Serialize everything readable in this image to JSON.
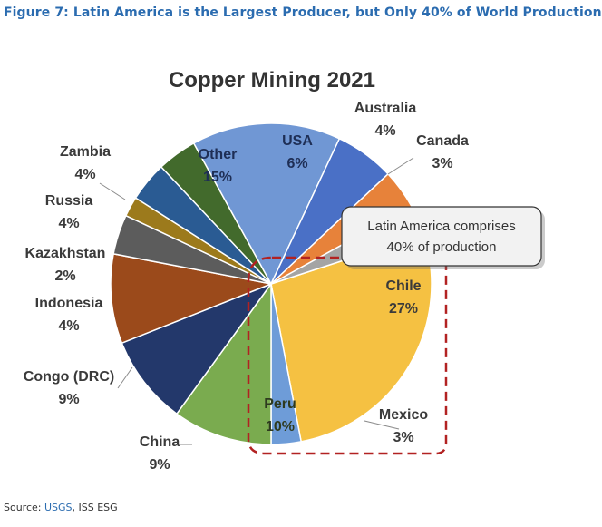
{
  "figure_title": "Figure 7: Latin America is the Largest Producer, but Only 40% of World Production",
  "source": {
    "prefix": "Source: ",
    "link": "USGS",
    "suffix": ", ISS ESG"
  },
  "chart_data": {
    "type": "pie",
    "title": "Copper Mining 2021",
    "slices": [
      {
        "label": "Chile",
        "value": 27,
        "display": "27%",
        "color": "#f5c142"
      },
      {
        "label": "Mexico",
        "value": 3,
        "display": "3%",
        "color": "#6e9cd8"
      },
      {
        "label": "Peru",
        "value": 10,
        "display": "10%",
        "color": "#7aab4f"
      },
      {
        "label": "China",
        "value": 9,
        "display": "9%",
        "color": "#23386b"
      },
      {
        "label": "Congo (DRC)",
        "value": 9,
        "display": "9%",
        "color": "#9b4a1b"
      },
      {
        "label": "Indonesia",
        "value": 4,
        "display": "4%",
        "color": "#5c5c5c"
      },
      {
        "label": "Kazakhstan",
        "value": 2,
        "display": "2%",
        "color": "#9c7a1c"
      },
      {
        "label": "Russia",
        "value": 4,
        "display": "4%",
        "color": "#2a5b93"
      },
      {
        "label": "Zambia",
        "value": 4,
        "display": "4%",
        "color": "#426a2c"
      },
      {
        "label": "Other",
        "value": 15,
        "display": "15%",
        "color": "#7097d4"
      },
      {
        "label": "USA",
        "value": 6,
        "display": "6%",
        "color": "#4a70c6"
      },
      {
        "label": "Australia",
        "value": 4,
        "display": "4%",
        "color": "#e7823a"
      },
      {
        "label": "Canada",
        "value": 3,
        "display": "3%",
        "color": "#a4a4a4"
      }
    ],
    "annotation": {
      "line1": "Latin America comprises",
      "line2": "40% of production"
    },
    "highlight_color": "#b22222"
  }
}
